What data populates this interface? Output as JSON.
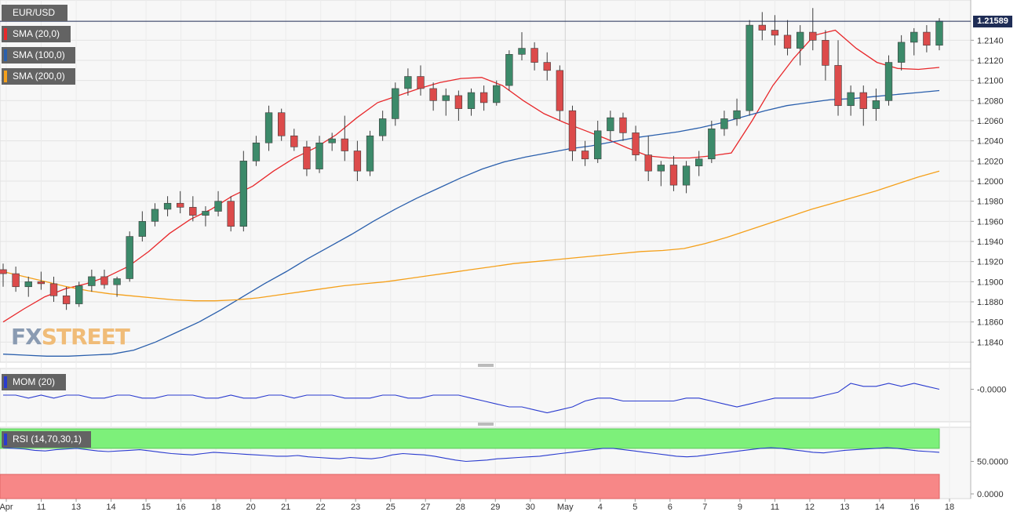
{
  "chart_data": {
    "type": "candlestick",
    "symbol": "EUR/USD",
    "last_price_label": "1.21589",
    "last_price": 1.21589,
    "price_axis": {
      "ylim": [
        1.182,
        1.218
      ],
      "ticks": [
        "1.2140",
        "1.2120",
        "1.2100",
        "1.2080",
        "1.2060",
        "1.2040",
        "1.2020",
        "1.2000",
        "1.1980",
        "1.1960",
        "1.1940",
        "1.1920",
        "1.1900",
        "1.1880",
        "1.1860",
        "1.1840"
      ]
    },
    "x_tick_labels": [
      "Apr",
      "11",
      "13",
      "14",
      "15",
      "16",
      "18",
      "20",
      "21",
      "22",
      "23",
      "25",
      "27",
      "28",
      "29",
      "30",
      "May",
      "4",
      "5",
      "6",
      "7",
      "9",
      "11",
      "12",
      "13",
      "14",
      "16",
      "18"
    ],
    "grid": true,
    "overlays": [
      {
        "name": "SMA (20,0)",
        "color": "#e8282b",
        "values": [
          1.186,
          1.1873,
          1.1885,
          1.1893,
          1.1898,
          1.1905,
          1.1915,
          1.193,
          1.1948,
          1.1962,
          1.1972,
          1.1985,
          1.1995,
          1.201,
          1.2023,
          1.2033,
          1.2046,
          1.2063,
          1.2078,
          1.2085,
          1.2092,
          1.2098,
          1.2102,
          1.2103,
          1.2095,
          1.208,
          1.2067,
          1.2058,
          1.205,
          1.2042,
          1.2033,
          1.2025,
          1.2023,
          1.2023,
          1.2025,
          1.2028,
          1.206,
          1.2095,
          1.2122,
          1.2145,
          1.215,
          1.2132,
          1.2118,
          1.2112,
          1.2111,
          1.2113
        ]
      },
      {
        "name": "SMA (100,0)",
        "color": "#2a5fac",
        "values": [
          1.1828,
          1.1827,
          1.1826,
          1.1826,
          1.1827,
          1.1828,
          1.1832,
          1.184,
          1.185,
          1.186,
          1.1872,
          1.1885,
          1.1898,
          1.191,
          1.1923,
          1.1935,
          1.1947,
          1.196,
          1.1972,
          1.1983,
          1.1993,
          1.2003,
          1.2012,
          1.2019,
          1.2024,
          1.2028,
          1.2032,
          1.2035,
          1.2039,
          1.2043,
          1.2046,
          1.2049,
          1.2053,
          1.2058,
          1.2064,
          1.207,
          1.2075,
          1.2078,
          1.2081,
          1.2082,
          1.2084,
          1.2086,
          1.2088,
          1.209
        ]
      },
      {
        "name": "SMA (200,0)",
        "color": "#f5a01a",
        "values": [
          1.191,
          1.1905,
          1.19,
          1.1895,
          1.1891,
          1.1888,
          1.1886,
          1.1884,
          1.1882,
          1.1881,
          1.1881,
          1.1882,
          1.1884,
          1.1887,
          1.189,
          1.1893,
          1.1896,
          1.1898,
          1.19,
          1.1903,
          1.1906,
          1.1909,
          1.1912,
          1.1915,
          1.1918,
          1.192,
          1.1922,
          1.1924,
          1.1926,
          1.1928,
          1.193,
          1.1931,
          1.1933,
          1.1938,
          1.1944,
          1.1951,
          1.1958,
          1.1965,
          1.1972,
          1.1978,
          1.1984,
          1.199,
          1.1997,
          1.2004,
          1.201
        ]
      }
    ],
    "candles": [
      [
        1.1912,
        1.1918,
        1.1895,
        1.1908
      ],
      [
        1.1908,
        1.1915,
        1.189,
        1.1895
      ],
      [
        1.1895,
        1.1905,
        1.1885,
        1.19
      ],
      [
        1.19,
        1.191,
        1.1892,
        1.1898
      ],
      [
        1.1898,
        1.1905,
        1.188,
        1.1886
      ],
      [
        1.1886,
        1.1895,
        1.1872,
        1.1878
      ],
      [
        1.1878,
        1.19,
        1.1875,
        1.1896
      ],
      [
        1.1896,
        1.1912,
        1.189,
        1.1905
      ],
      [
        1.1905,
        1.1912,
        1.1893,
        1.1897
      ],
      [
        1.1897,
        1.1905,
        1.1885,
        1.1903
      ],
      [
        1.1903,
        1.195,
        1.19,
        1.1945
      ],
      [
        1.1945,
        1.197,
        1.194,
        1.196
      ],
      [
        1.196,
        1.1978,
        1.1955,
        1.1972
      ],
      [
        1.1972,
        1.1985,
        1.1965,
        1.1978
      ],
      [
        1.1978,
        1.199,
        1.1968,
        1.1974
      ],
      [
        1.1974,
        1.1985,
        1.196,
        1.1966
      ],
      [
        1.1966,
        1.1975,
        1.1955,
        1.197
      ],
      [
        1.197,
        1.199,
        1.1965,
        1.198
      ],
      [
        1.198,
        1.1985,
        1.195,
        1.1955
      ],
      [
        1.1955,
        1.203,
        1.195,
        1.202
      ],
      [
        1.202,
        1.2045,
        1.2015,
        1.2038
      ],
      [
        1.2038,
        1.2075,
        1.203,
        1.2068
      ],
      [
        1.2068,
        1.2072,
        1.204,
        1.2045
      ],
      [
        1.2045,
        1.2052,
        1.203,
        1.2034
      ],
      [
        1.2034,
        1.204,
        1.2005,
        1.2012
      ],
      [
        1.2012,
        1.2045,
        1.2008,
        1.2038
      ],
      [
        1.2038,
        1.2048,
        1.203,
        1.2042
      ],
      [
        1.2042,
        1.2065,
        1.202,
        1.203
      ],
      [
        1.203,
        1.204,
        1.2,
        1.201
      ],
      [
        1.201,
        1.205,
        1.2005,
        1.2045
      ],
      [
        1.2045,
        1.207,
        1.204,
        1.2062
      ],
      [
        1.2062,
        1.2098,
        1.2055,
        1.2092
      ],
      [
        1.2092,
        1.2112,
        1.2085,
        1.2104
      ],
      [
        1.2104,
        1.2115,
        1.2085,
        1.2092
      ],
      [
        1.2092,
        1.2098,
        1.207,
        1.208
      ],
      [
        1.208,
        1.2092,
        1.2065,
        1.2085
      ],
      [
        1.2085,
        1.209,
        1.206,
        1.2072
      ],
      [
        1.2072,
        1.2092,
        1.2065,
        1.2088
      ],
      [
        1.2088,
        1.2095,
        1.207,
        1.2078
      ],
      [
        1.2078,
        1.21,
        1.2075,
        1.2095
      ],
      [
        1.2095,
        1.213,
        1.209,
        1.2126
      ],
      [
        1.2126,
        1.2148,
        1.212,
        1.2132
      ],
      [
        1.2132,
        1.2138,
        1.211,
        1.2118
      ],
      [
        1.2118,
        1.2128,
        1.21,
        1.211
      ],
      [
        1.211,
        1.2115,
        1.206,
        1.207
      ],
      [
        1.207,
        1.2075,
        1.202,
        1.203
      ],
      [
        1.203,
        1.204,
        1.2015,
        1.2022
      ],
      [
        1.2022,
        1.206,
        1.2018,
        1.205
      ],
      [
        1.205,
        1.207,
        1.204,
        1.2063
      ],
      [
        1.2063,
        1.2068,
        1.204,
        1.2048
      ],
      [
        1.2048,
        1.2055,
        1.202,
        1.2026
      ],
      [
        1.2026,
        1.2045,
        1.2,
        1.201
      ],
      [
        1.201,
        1.202,
        1.1995,
        1.2016
      ],
      [
        1.2016,
        1.2025,
        1.199,
        1.1996
      ],
      [
        1.1996,
        1.202,
        1.1988,
        1.2015
      ],
      [
        1.2015,
        1.203,
        1.2005,
        1.2022
      ],
      [
        1.2022,
        1.206,
        1.2018,
        1.2052
      ],
      [
        1.2052,
        1.207,
        1.2045,
        1.2062
      ],
      [
        1.2062,
        1.2082,
        1.2055,
        1.207
      ],
      [
        1.207,
        1.216,
        1.2065,
        1.2155
      ],
      [
        1.2155,
        1.2168,
        1.214,
        1.215
      ],
      [
        1.215,
        1.2165,
        1.2135,
        1.2145
      ],
      [
        1.2145,
        1.216,
        1.2125,
        1.2132
      ],
      [
        1.2132,
        1.2155,
        1.2115,
        1.2148
      ],
      [
        1.2148,
        1.2172,
        1.213,
        1.214
      ],
      [
        1.214,
        1.215,
        1.21,
        1.2115
      ],
      [
        1.2115,
        1.214,
        1.2065,
        1.2075
      ],
      [
        1.2075,
        1.2095,
        1.2065,
        1.2088
      ],
      [
        1.2088,
        1.2095,
        1.2055,
        1.2072
      ],
      [
        1.2072,
        1.2092,
        1.206,
        1.208
      ],
      [
        1.208,
        1.2125,
        1.2075,
        1.2118
      ],
      [
        1.2118,
        1.2145,
        1.211,
        1.2138
      ],
      [
        1.2138,
        1.2152,
        1.2125,
        1.2148
      ],
      [
        1.2148,
        1.2155,
        1.2128,
        1.2135
      ],
      [
        1.2135,
        1.2162,
        1.213,
        1.2159
      ]
    ],
    "indicators": [
      {
        "name": "MOM (20)",
        "color": "#2a3bcf",
        "axis_label": "-0.0000",
        "values": [
          -0.0002,
          -0.0002,
          -0.0003,
          -0.0002,
          -0.0003,
          -0.0002,
          -0.0002,
          -0.0003,
          -0.0003,
          -0.0002,
          -0.0002,
          -0.0003,
          -0.0003,
          -0.0002,
          -0.0002,
          -0.0002,
          -0.0003,
          -0.0003,
          -0.0002,
          -0.0003,
          -0.0003,
          -0.0002,
          -0.0002,
          -0.0003,
          -0.0002,
          -0.0002,
          -0.0002,
          -0.0003,
          -0.0003,
          -0.0003,
          -0.0002,
          -0.0002,
          -0.0003,
          -0.0003,
          -0.0002,
          -0.0002,
          -0.0002,
          -0.0003,
          -0.0004,
          -0.0005,
          -0.0006,
          -0.0006,
          -0.0007,
          -0.0008,
          -0.0007,
          -0.0006,
          -0.0004,
          -0.0003,
          -0.0003,
          -0.0004,
          -0.0004,
          -0.0004,
          -0.0004,
          -0.0004,
          -0.0003,
          -0.0003,
          -0.0004,
          -0.0005,
          -0.0006,
          -0.0005,
          -0.0004,
          -0.0003,
          -0.0003,
          -0.0003,
          -0.0003,
          -0.0002,
          -0.0001,
          0.0002,
          0.0001,
          0.0001,
          0.0002,
          0.0001,
          0.0002,
          0.0001,
          0.0
        ]
      },
      {
        "name": "RSI (14,70,30,1)",
        "color": "#2a3bcf",
        "axis_labels": [
          "50.0000",
          "0.0000"
        ],
        "levels": [
          70,
          30
        ],
        "values": [
          71,
          70,
          69,
          67,
          66,
          68,
          69,
          70,
          68,
          66,
          65,
          66,
          67,
          68,
          66,
          64,
          62,
          61,
          60,
          62,
          64,
          63,
          62,
          61,
          60,
          59,
          58,
          58,
          59,
          57,
          56,
          55,
          54,
          56,
          55,
          54,
          56,
          60,
          62,
          61,
          60,
          58,
          55,
          52,
          50,
          51,
          52,
          54,
          55,
          56,
          57,
          58,
          60,
          62,
          64,
          66,
          68,
          70,
          70,
          68,
          66,
          64,
          62,
          60,
          58,
          57,
          58,
          60,
          62,
          64,
          66,
          68,
          70,
          71,
          70,
          68,
          66,
          64,
          63,
          65,
          67,
          68,
          69,
          70,
          71,
          70,
          68,
          66,
          65,
          64
        ]
      }
    ]
  },
  "logo": {
    "fx": "FX",
    "street": "STREET"
  }
}
